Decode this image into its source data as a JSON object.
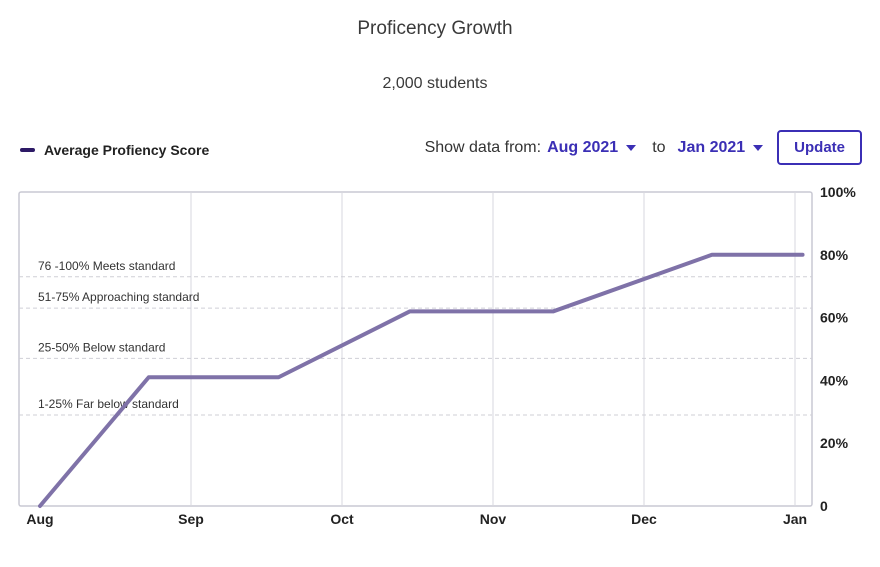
{
  "header": {
    "title": "Proficency Growth",
    "subtitle": "2,000 students"
  },
  "legend": {
    "label": "Average Profiency Score",
    "color": "#2d1a66"
  },
  "controls": {
    "from_label": "Show data from:",
    "from_value": "Aug 2021",
    "to_label": "to",
    "to_value": "Jan 2021",
    "update_label": "Update"
  },
  "chart_data": {
    "type": "line",
    "title": "Proficency Growth",
    "subtitle": "2,000 students",
    "x_ticks": [
      "Aug",
      "Sep",
      "Oct",
      "Nov",
      "Dec",
      "Jan"
    ],
    "y_ticks": [
      "0",
      "20%",
      "40%",
      "60%",
      "80%",
      "100%"
    ],
    "ylim": [
      0,
      100
    ],
    "xlim": [
      0,
      5.05
    ],
    "grid": "vertical at months, dashed at band thresholds",
    "legend_position": "top-left",
    "bands": [
      {
        "label": "1-25% Far below standard",
        "threshold": 29
      },
      {
        "label": "25-50% Below standard",
        "threshold": 47
      },
      {
        "label": "51-75% Approaching standard",
        "threshold": 63
      },
      {
        "label": "76 -100% Meets standard",
        "threshold": 73
      }
    ],
    "series": [
      {
        "name": "Average Profiency Score",
        "color": "#7f72a8",
        "x": [
          0,
          0.72,
          1.58,
          2.45,
          3.4,
          4.45,
          5.05
        ],
        "y": [
          0,
          41,
          41,
          62,
          62,
          80,
          80
        ]
      }
    ]
  }
}
